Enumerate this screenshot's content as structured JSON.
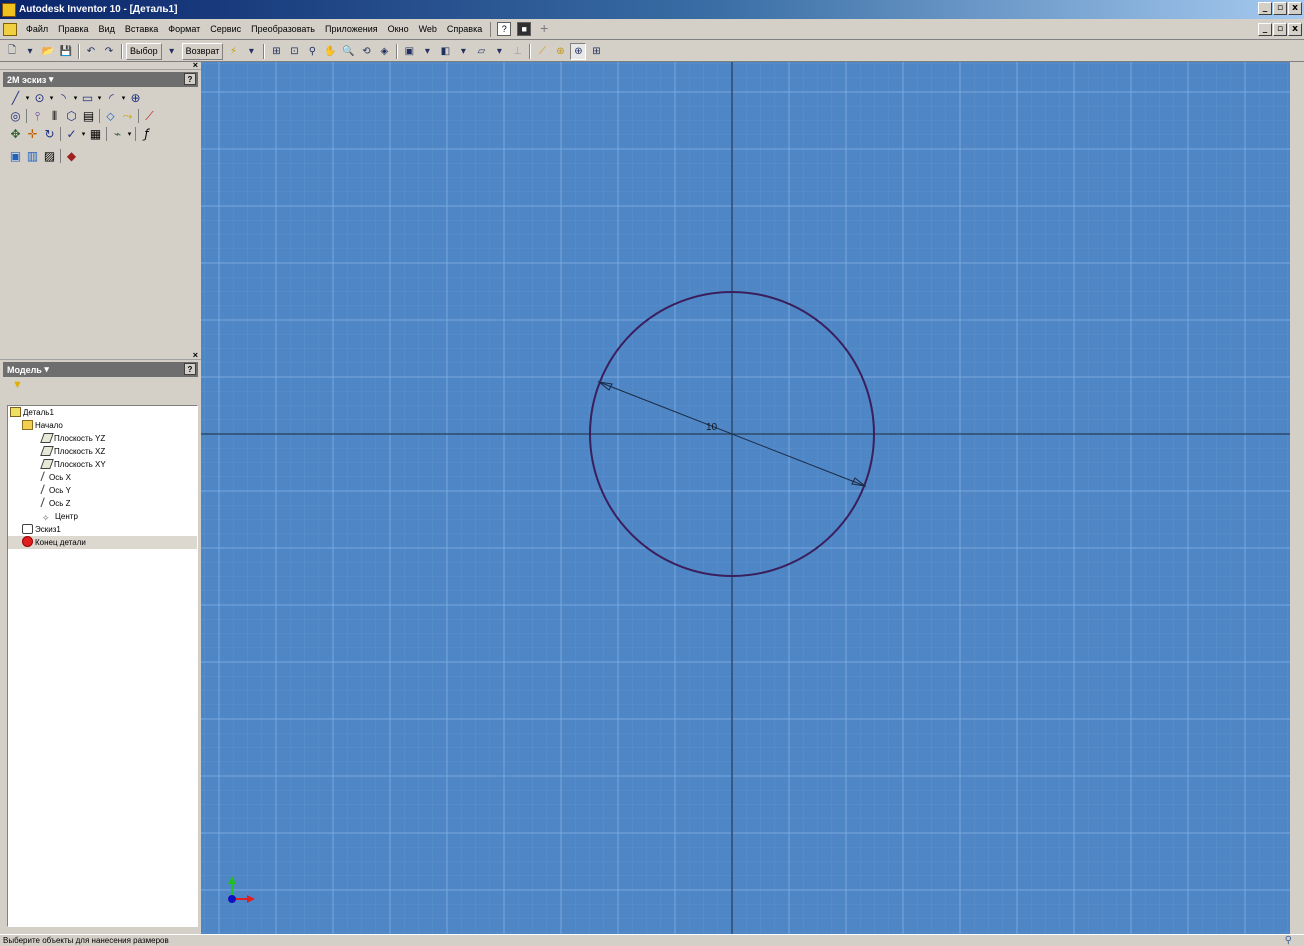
{
  "window": {
    "title": "Autodesk Inventor 10 - [Деталь1]",
    "controls": [
      "_",
      "▫",
      "x"
    ],
    "doc_controls": [
      "_",
      "▫",
      "x"
    ]
  },
  "menu": {
    "items": [
      "Файл",
      "Правка",
      "Вид",
      "Вставка",
      "Формат",
      "Сервис",
      "Преобразовать",
      "Приложения",
      "Окно",
      "Web",
      "Справка"
    ],
    "help_icon": "help-icon",
    "dark_icon": "dark-toolbar-icon",
    "plus_icon": "plus-icon"
  },
  "toolbar": {
    "select_label": "Выбор",
    "return_label": "Возврат",
    "icons": [
      "new-icon",
      "open-icon",
      "save-icon",
      "undo-icon",
      "redo-icon",
      "update-icon",
      "zoom-all-icon",
      "zoom-window-icon",
      "zoom-icon",
      "pan-icon",
      "zoom-selected-icon",
      "orbit-icon",
      "look-at-icon",
      "display-mode-icon",
      "shadow-icon",
      "section-icon",
      "center-of-gravity-icon",
      "grid-icon"
    ]
  },
  "sketch_panel": {
    "title": "2М эскиз",
    "rows": [
      [
        "line-tool",
        "circle-tool",
        "arc-tool",
        "rectangle-tool",
        "fillet-tool",
        "point-tool"
      ],
      [
        "ellipse-tool",
        "mirror-tool",
        "pattern-tool",
        "offset-tool",
        "dimension-tool",
        "constraint-tool",
        "extend-tool"
      ],
      [
        "move-tool",
        "rotate-tool",
        "trim-tool",
        "check-tool",
        "project-tool",
        "parameters-tool",
        "function-tool"
      ],
      [
        "insert-image-tool",
        "edit-tool",
        "picture-tool",
        "finish-tool"
      ]
    ]
  },
  "model_panel": {
    "title": "Модель",
    "tree": [
      {
        "label": "Деталь1",
        "depth": 0,
        "icon": "part"
      },
      {
        "label": "Начало",
        "depth": 1,
        "icon": "folder"
      },
      {
        "label": "Плоскость YZ",
        "depth": 2,
        "icon": "plane"
      },
      {
        "label": "Плоскость XZ",
        "depth": 2,
        "icon": "plane"
      },
      {
        "label": "Плоскость XY",
        "depth": 2,
        "icon": "plane"
      },
      {
        "label": "Ось X",
        "depth": 2,
        "icon": "axis"
      },
      {
        "label": "Ось Y",
        "depth": 2,
        "icon": "axis"
      },
      {
        "label": "Ось Z",
        "depth": 2,
        "icon": "axis"
      },
      {
        "label": "Центр",
        "depth": 2,
        "icon": "center"
      },
      {
        "label": "Эскиз1",
        "depth": 1,
        "icon": "sketch"
      },
      {
        "label": "Конец детали",
        "depth": 1,
        "icon": "end"
      }
    ]
  },
  "sketch": {
    "dimension_value": "10"
  },
  "colors": {
    "canvas": "#4f86c6",
    "grid": "#6b9ad0",
    "axes": "#2f4a6a",
    "circle": "#3a1f5c"
  },
  "status": {
    "message": "Выберите объекты для нанесения размеров"
  }
}
